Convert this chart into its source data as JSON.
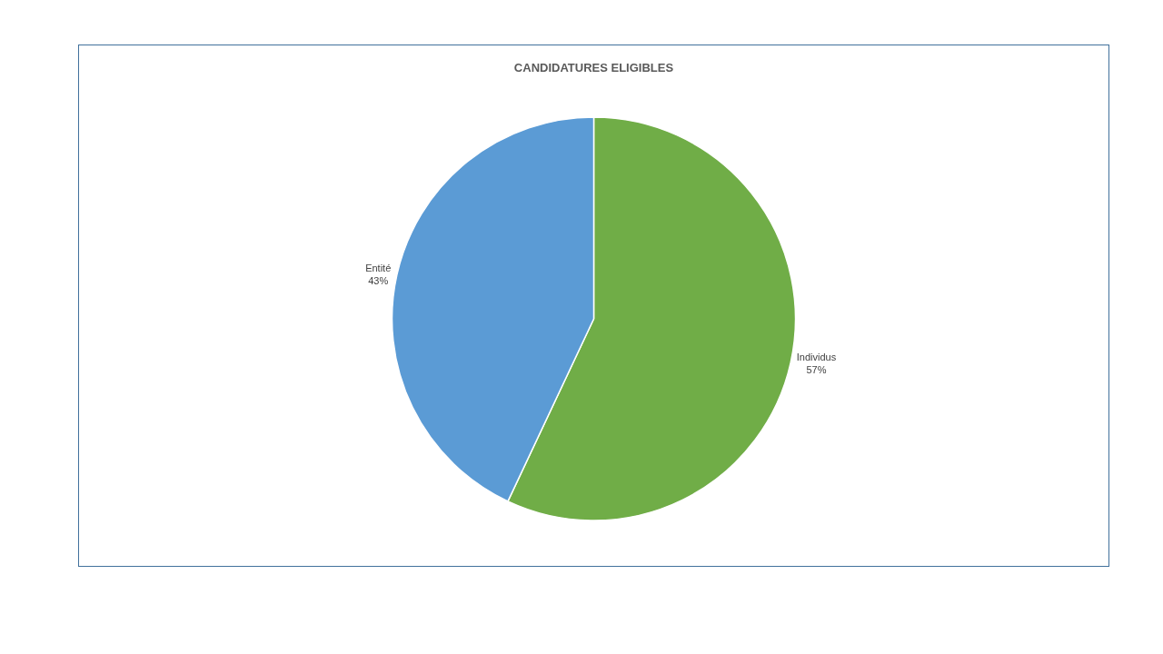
{
  "chart_data": {
    "type": "pie",
    "title": "CANDIDATURES ELIGIBLES",
    "categories": [
      "Individus",
      "Entité"
    ],
    "values": [
      57,
      43
    ],
    "value_labels": [
      "57%",
      "43%"
    ],
    "colors": [
      "#70ad47",
      "#5b9bd5"
    ],
    "legend": false
  }
}
